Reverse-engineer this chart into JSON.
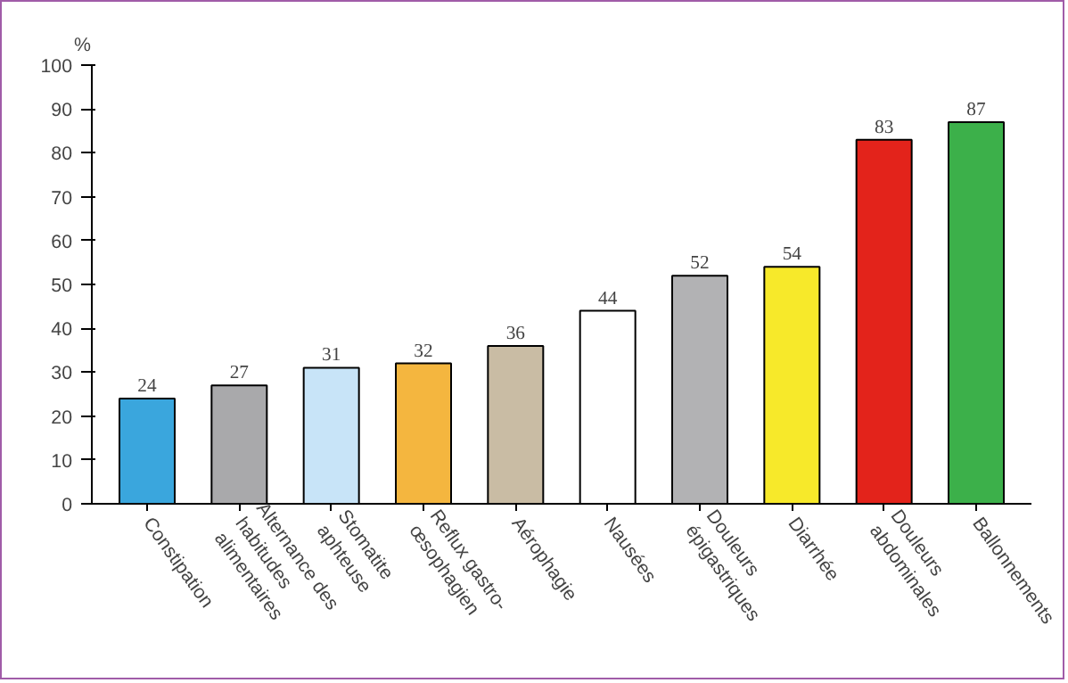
{
  "chart_data": {
    "type": "bar",
    "ylabel": "%",
    "categories": [
      "Constipation",
      "Alternance des\nhabitudes\nalimentaires",
      "Stomatite\naphteuse",
      "Reflux gastro-\nœsophagien",
      "Aérophagie",
      "Nausées",
      "Douleurs\népigastriques",
      "Diarrhée",
      "Douleurs\nabdominales",
      "Ballonnements"
    ],
    "values": [
      24,
      27,
      31,
      32,
      36,
      44,
      52,
      54,
      83,
      87
    ],
    "colors": [
      "#3aa6dd",
      "#a9a9ab",
      "#c8e4f8",
      "#f4b63f",
      "#c9bca4",
      "#ffffff",
      "#b2b2b4",
      "#f7e92a",
      "#e3231b",
      "#3cb04a"
    ],
    "ylim": [
      0,
      100
    ],
    "yticks": [
      0,
      10,
      20,
      30,
      40,
      50,
      60,
      70,
      80,
      90,
      100
    ],
    "grid": false,
    "data_labels": true
  }
}
